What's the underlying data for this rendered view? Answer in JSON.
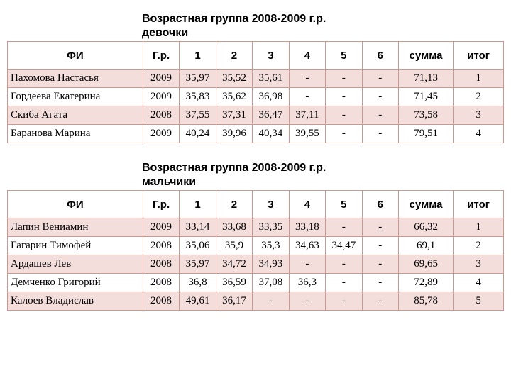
{
  "colors": {
    "border": "#c69a93",
    "row_alt_bg": "#f3dedb",
    "row_bg": "#ffffff",
    "text": "#000000"
  },
  "headers": {
    "name": "ФИ",
    "year": "Г.р.",
    "c1": "1",
    "c2": "2",
    "c3": "3",
    "c4": "4",
    "c5": "5",
    "c6": "6",
    "sum": "сумма",
    "result": "итог"
  },
  "table1": {
    "title": "Возрастная группа 2008-2009 г.р.",
    "subtitle": "девочки",
    "rows": [
      {
        "name": "Пахомова Настасья",
        "year": "2009",
        "v": [
          "35,97",
          "35,52",
          "35,61",
          "-",
          "-",
          "-"
        ],
        "sum": "71,13",
        "res": "1"
      },
      {
        "name": "Гордеева Екатерина",
        "year": "2009",
        "v": [
          "35,83",
          "35,62",
          "36,98",
          "-",
          "-",
          "-"
        ],
        "sum": "71,45",
        "res": "2"
      },
      {
        "name": "Скиба Агата",
        "year": "2008",
        "v": [
          "37,55",
          "37,31",
          "36,47",
          "37,11",
          "-",
          "-"
        ],
        "sum": "73,58",
        "res": "3"
      },
      {
        "name": "Баранова Марина",
        "year": "2009",
        "v": [
          "40,24",
          "39,96",
          "40,34",
          "39,55",
          "-",
          "-"
        ],
        "sum": "79,51",
        "res": "4"
      }
    ]
  },
  "table2": {
    "title": "Возрастная группа 2008-2009 г.р.",
    "subtitle": "мальчики",
    "rows": [
      {
        "name": "Лапин Вениамин",
        "year": "2009",
        "v": [
          "33,14",
          "33,68",
          "33,35",
          "33,18",
          "-",
          "-"
        ],
        "sum": "66,32",
        "res": "1"
      },
      {
        "name": "Гагарин Тимофей",
        "year": "2008",
        "v": [
          "35,06",
          "35,9",
          "35,3",
          "34,63",
          "34,47",
          "-"
        ],
        "sum": "69,1",
        "res": "2"
      },
      {
        "name": "Ардашев Лев",
        "year": "2008",
        "v": [
          "35,97",
          "34,72",
          "34,93",
          "-",
          "-",
          "-"
        ],
        "sum": "69,65",
        "res": "3"
      },
      {
        "name": "Демченко Григорий",
        "year": "2008",
        "v": [
          "36,8",
          "36,59",
          "37,08",
          "36,3",
          "-",
          "-"
        ],
        "sum": "72,89",
        "res": "4"
      },
      {
        "name": "Калоев Владислав",
        "year": "2008",
        "v": [
          "49,61",
          "36,17",
          "-",
          "-",
          "-",
          "-"
        ],
        "sum": "85,78",
        "res": "5"
      }
    ]
  }
}
